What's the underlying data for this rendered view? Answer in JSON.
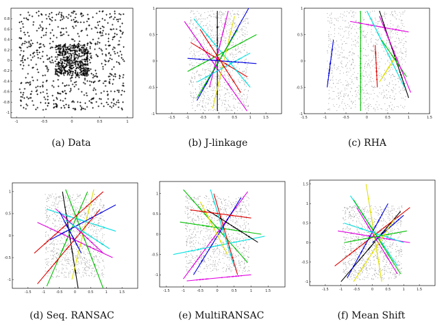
{
  "figure": {
    "captions": [
      "(a) Data",
      "(b) J-linkage",
      "(c) RHA",
      "(d) Seq. RANSAC",
      "(e) MultiRANSAC",
      "(f) Mean Shift"
    ]
  },
  "colors": {
    "palette": [
      "#e00000",
      "#00c000",
      "#0000e0",
      "#00e0e0",
      "#e000e0",
      "#e0e000",
      "#000000"
    ],
    "data_points": "#000000",
    "outliers": "#9a9a9a"
  },
  "chart_data": [
    {
      "type": "scatter",
      "title": "",
      "xlabel": "",
      "ylabel": "",
      "xlim": [
        -1.1,
        1.1
      ],
      "ylim": [
        -1.1,
        1.0
      ],
      "xticks": [
        "-1",
        "-0.5",
        "0",
        "0.5",
        "1"
      ],
      "yticks": [
        "0.8",
        "0.6",
        "0.4",
        "0.2",
        "0",
        "-0.2",
        "-0.4",
        "-0.6",
        "-0.8",
        "-1"
      ],
      "marker": "plus",
      "lines": []
    },
    {
      "type": "scatter",
      "title": "",
      "xlabel": "",
      "ylabel": "",
      "xlim": [
        -2,
        2
      ],
      "ylim": [
        -1,
        1
      ],
      "xticks": [
        "-1.5",
        "-1",
        "-0.5",
        "0",
        "0.5",
        "1",
        "1.5"
      ],
      "yticks": [
        "1",
        "0.5",
        "0",
        "-0.5",
        "-1"
      ],
      "marker": "dot",
      "lines": [
        {
          "color": "#000000",
          "x1": -0.05,
          "y1": 0.95,
          "x2": -0.05,
          "y2": -0.95
        },
        {
          "color": "#0000e0",
          "x1": 0.95,
          "y1": 1.0,
          "x2": -0.7,
          "y2": -0.75
        },
        {
          "color": "#e000e0",
          "x1": -1.1,
          "y1": 0.75,
          "x2": 0.9,
          "y2": -0.95
        },
        {
          "color": "#00c000",
          "x1": -1.0,
          "y1": -0.2,
          "x2": 1.2,
          "y2": 0.5
        },
        {
          "color": "#e00000",
          "x1": -0.9,
          "y1": 0.35,
          "x2": 0.9,
          "y2": -0.3
        },
        {
          "color": "#00e0e0",
          "x1": -0.8,
          "y1": 0.8,
          "x2": 1.0,
          "y2": -0.5
        },
        {
          "color": "#e0e000",
          "x1": -0.2,
          "y1": -0.9,
          "x2": 0.5,
          "y2": 0.85
        },
        {
          "color": "#e000e0",
          "x1": -0.3,
          "y1": -0.5,
          "x2": 0.3,
          "y2": 0.95
        },
        {
          "color": "#00c000",
          "x1": -0.7,
          "y1": -0.7,
          "x2": 0.6,
          "y2": 0.6
        },
        {
          "color": "#00e0e0",
          "x1": -0.7,
          "y1": -0.4,
          "x2": 1.0,
          "y2": 0.15
        },
        {
          "color": "#0000e0",
          "x1": -1.0,
          "y1": 0.05,
          "x2": 1.2,
          "y2": -0.05
        },
        {
          "color": "#e00000",
          "x1": -0.6,
          "y1": 0.6,
          "x2": 0.7,
          "y2": -0.6
        }
      ]
    },
    {
      "type": "scatter",
      "title": "",
      "xlabel": "",
      "ylabel": "",
      "xlim": [
        -1.5,
        1.5
      ],
      "ylim": [
        -1,
        1
      ],
      "xticks": [
        "-1.5",
        "-1",
        "-0.5",
        "0",
        "0.5",
        "1",
        "1.5"
      ],
      "yticks": [
        "1",
        "0.5",
        "0",
        "-0.5",
        "-1"
      ],
      "marker": "dot",
      "lines": [
        {
          "color": "#00c000",
          "x1": -0.15,
          "y1": 0.95,
          "x2": -0.15,
          "y2": -0.95
        },
        {
          "color": "#0000e0",
          "x1": -0.8,
          "y1": 0.4,
          "x2": -0.95,
          "y2": -0.5
        },
        {
          "color": "#e00000",
          "x1": 0.2,
          "y1": 0.3,
          "x2": 0.25,
          "y2": -0.5
        },
        {
          "color": "#e000e0",
          "x1": -0.4,
          "y1": 0.75,
          "x2": 1.0,
          "y2": 0.55
        },
        {
          "color": "#000000",
          "x1": 0.3,
          "y1": 0.95,
          "x2": 1.0,
          "y2": -0.7
        },
        {
          "color": "#00e0e0",
          "x1": 0.0,
          "y1": 0.95,
          "x2": 0.9,
          "y2": -0.5
        },
        {
          "color": "#e0e000",
          "x1": 0.3,
          "y1": -0.4,
          "x2": 0.7,
          "y2": 0.1
        },
        {
          "color": "#00c000",
          "x1": 0.35,
          "y1": 0.4,
          "x2": 0.95,
          "y2": -0.3
        },
        {
          "color": "#e000e0",
          "x1": 0.3,
          "y1": 0.85,
          "x2": 1.05,
          "y2": -0.6
        }
      ]
    },
    {
      "type": "scatter",
      "title": "",
      "xlabel": "",
      "ylabel": "",
      "xlim": [
        -2,
        2
      ],
      "ylim": [
        -1.2,
        1.2
      ],
      "xticks": [
        "-1.5",
        "-1",
        "-0.5",
        "0",
        "0.5",
        "1",
        "1.5"
      ],
      "yticks": [
        "1",
        "0.5",
        "0",
        "-0.5",
        "-1"
      ],
      "marker": "dot",
      "lines": [
        {
          "color": "#000000",
          "x1": -0.4,
          "y1": 1.0,
          "x2": 0.1,
          "y2": -1.2
        },
        {
          "color": "#00c000",
          "x1": -0.9,
          "y1": -1.15,
          "x2": 0.4,
          "y2": 1.0
        },
        {
          "color": "#e0e000",
          "x1": -0.1,
          "y1": -1.0,
          "x2": 0.6,
          "y2": 1.05
        },
        {
          "color": "#e000e0",
          "x1": -1.2,
          "y1": 0.3,
          "x2": 1.2,
          "y2": -0.5
        },
        {
          "color": "#0000e0",
          "x1": -0.8,
          "y1": -0.1,
          "x2": 1.3,
          "y2": 0.7
        },
        {
          "color": "#00e0e0",
          "x1": -0.9,
          "y1": 0.6,
          "x2": 1.3,
          "y2": 0.1
        },
        {
          "color": "#e00000",
          "x1": -1.3,
          "y1": -0.4,
          "x2": 0.9,
          "y2": 1.0
        },
        {
          "color": "#e00000",
          "x1": -1.2,
          "y1": -1.1,
          "x2": 0.8,
          "y2": 0.6
        },
        {
          "color": "#00c000",
          "x1": -0.3,
          "y1": 1.05,
          "x2": 0.9,
          "y2": -1.2
        },
        {
          "color": "#e000e0",
          "x1": -0.6,
          "y1": 0.6,
          "x2": 0.9,
          "y2": -0.4
        },
        {
          "color": "#00e0e0",
          "x1": -0.3,
          "y1": 0.35,
          "x2": 1.1,
          "y2": -0.3
        },
        {
          "color": "#0000e0",
          "x1": -0.5,
          "y1": 0.55,
          "x2": 0.2,
          "y2": -0.4
        }
      ]
    },
    {
      "type": "scatter",
      "title": "",
      "xlabel": "",
      "ylabel": "",
      "xlim": [
        -1.7,
        2
      ],
      "ylim": [
        -1.3,
        1.3
      ],
      "xticks": [
        "-1.5",
        "-1",
        "-0.5",
        "0",
        "0.5",
        "1",
        "1.5"
      ],
      "yticks": [
        "1",
        "0.5",
        "0",
        "-0.5",
        "-1"
      ],
      "marker": "dot",
      "lines": [
        {
          "color": "#00c000",
          "x1": -1.0,
          "y1": 1.1,
          "x2": 0.9,
          "y2": -0.7
        },
        {
          "color": "#e000e0",
          "x1": 0.9,
          "y1": 1.05,
          "x2": -1.0,
          "y2": -1.1
        },
        {
          "color": "#00e0e0",
          "x1": -1.3,
          "y1": -0.5,
          "x2": 1.4,
          "y2": -0.05
        },
        {
          "color": "#00c000",
          "x1": -1.1,
          "y1": 0.3,
          "x2": 1.3,
          "y2": 0.0
        },
        {
          "color": "#0000e0",
          "x1": -0.7,
          "y1": -1.0,
          "x2": 0.7,
          "y2": 0.9
        },
        {
          "color": "#e00000",
          "x1": -0.1,
          "y1": 1.0,
          "x2": 0.6,
          "y2": -1.0
        },
        {
          "color": "#000000",
          "x1": -0.3,
          "y1": 0.6,
          "x2": 1.2,
          "y2": -0.2
        },
        {
          "color": "#e000e0",
          "x1": -0.9,
          "y1": -1.15,
          "x2": 1.0,
          "y2": -1.0
        },
        {
          "color": "#e0e000",
          "x1": -0.5,
          "y1": 0.8,
          "x2": 0.3,
          "y2": -0.5
        },
        {
          "color": "#00e0e0",
          "x1": -0.2,
          "y1": 1.1,
          "x2": 0.5,
          "y2": -0.8
        },
        {
          "color": "#e00000",
          "x1": -0.8,
          "y1": 0.6,
          "x2": 1.0,
          "y2": 0.4
        }
      ]
    },
    {
      "type": "scatter",
      "title": "",
      "xlabel": "",
      "ylabel": "",
      "xlim": [
        -2,
        2
      ],
      "ylim": [
        -1.1,
        1.6
      ],
      "xticks": [
        "-1.5",
        "-1",
        "-0.5",
        "0",
        "0.5",
        "1",
        "1.5"
      ],
      "yticks": [
        "1.5",
        "1",
        "0.5",
        "0",
        "-0.5",
        "-1"
      ],
      "marker": "dot",
      "lines": [
        {
          "color": "#000000",
          "x1": 0.9,
          "y1": 0.8,
          "x2": -1.0,
          "y2": -1.0
        },
        {
          "color": "#0000e0",
          "x1": 0.0,
          "y1": 0.0,
          "x2": 1.0,
          "y2": 0.7
        },
        {
          "color": "#e00000",
          "x1": -1.2,
          "y1": -0.6,
          "x2": 1.2,
          "y2": 0.9
        },
        {
          "color": "#00e0e0",
          "x1": -0.7,
          "y1": 1.2,
          "x2": 0.8,
          "y2": -0.6
        },
        {
          "color": "#00c000",
          "x1": -0.6,
          "y1": 1.1,
          "x2": 0.9,
          "y2": -0.8
        },
        {
          "color": "#e0e000",
          "x1": -0.2,
          "y1": 1.5,
          "x2": 0.3,
          "y2": -1.0
        },
        {
          "color": "#e000e0",
          "x1": -1.1,
          "y1": 0.3,
          "x2": 1.2,
          "y2": 0.0
        },
        {
          "color": "#0000e0",
          "x1": -0.8,
          "y1": -0.9,
          "x2": 0.5,
          "y2": 1.0
        },
        {
          "color": "#e000e0",
          "x1": -0.5,
          "y1": 0.9,
          "x2": 0.8,
          "y2": -0.8
        },
        {
          "color": "#00e0e0",
          "x1": -0.9,
          "y1": 0.5,
          "x2": 1.0,
          "y2": 0.0
        },
        {
          "color": "#00c000",
          "x1": -0.9,
          "y1": 0.0,
          "x2": 1.1,
          "y2": 0.3
        },
        {
          "color": "#e0e000",
          "x1": -0.6,
          "y1": -1.0,
          "x2": 0.7,
          "y2": 0.6
        }
      ]
    }
  ]
}
